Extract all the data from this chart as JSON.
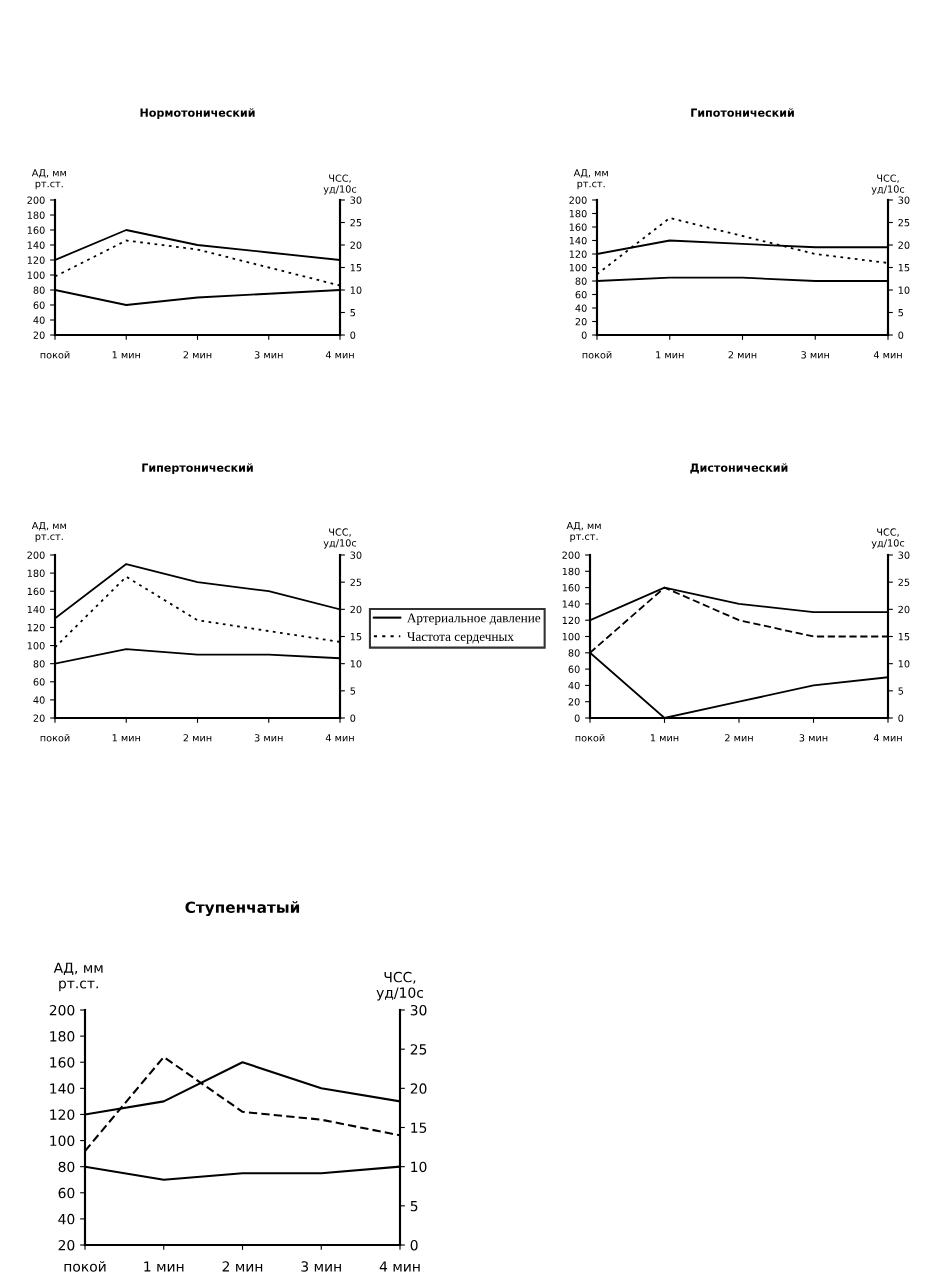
{
  "chart_data": [
    {
      "type": "line",
      "title": "Нормотонический",
      "ylabel": "АД, мм\nрт.ст.",
      "y2label": "ЧСС,\nуд/10с",
      "categories": [
        "покой",
        "1 мин",
        "2 мин",
        "3 мин",
        "4 мин"
      ],
      "series": [
        {
          "color": "#000000",
          "values": [
            120,
            160,
            140,
            130,
            120
          ],
          "line_style": "solid"
        },
        {
          "color": "#000000",
          "values": [
            80,
            60,
            70,
            75,
            80
          ],
          "line_style": "solid"
        },
        {
          "color": "#000000",
          "values": [
            13,
            21,
            19,
            15,
            11
          ],
          "axis": "y2",
          "line_style": "dotted"
        }
      ],
      "ylim": [
        20,
        200
      ],
      "yticks": [
        20,
        40,
        60,
        80,
        100,
        120,
        140,
        160,
        180,
        200
      ],
      "y2lim": [
        0,
        30
      ],
      "y2ticks": [
        0,
        5,
        10,
        15,
        20,
        25,
        30
      ],
      "grid": false,
      "legend": false
    },
    {
      "type": "line",
      "title": "Гипотонический",
      "ylabel": "АД, мм\nрт.ст.",
      "y2label": "ЧСС,\nуд/10с",
      "categories": [
        "покой",
        "1 мин",
        "2 мин",
        "3 мин",
        "4 мин"
      ],
      "series": [
        {
          "color": "#000000",
          "values": [
            120,
            140,
            135,
            130,
            130
          ],
          "line_style": "solid"
        },
        {
          "color": "#000000",
          "values": [
            80,
            85,
            85,
            80,
            80
          ],
          "line_style": "solid"
        },
        {
          "color": "#000000",
          "values": [
            13.5,
            26,
            22,
            18,
            16
          ],
          "axis": "y2",
          "line_style": "dotted"
        }
      ],
      "ylim": [
        0,
        200
      ],
      "yticks": [
        0,
        20,
        40,
        60,
        80,
        100,
        120,
        140,
        160,
        180,
        200
      ],
      "y2lim": [
        0,
        30
      ],
      "y2ticks": [
        0,
        5,
        10,
        15,
        20,
        25,
        30
      ],
      "grid": false,
      "legend": false
    },
    {
      "type": "line",
      "title": "Гипертонический",
      "ylabel": "АД, мм\nрт.ст.",
      "y2label": "ЧСС,\nуд/10с",
      "categories": [
        "покой",
        "1 мин",
        "2 мин",
        "3 мин",
        "4 мин"
      ],
      "series": [
        {
          "name": "Артериальное давление",
          "color": "#000000",
          "values": [
            130,
            190,
            170,
            160,
            140
          ],
          "line_style": "solid"
        },
        {
          "color": "#000000",
          "values": [
            80,
            96,
            90,
            90,
            86
          ],
          "line_style": "solid"
        },
        {
          "name": "Частота сердечных",
          "color": "#000000",
          "values": [
            13,
            26,
            18,
            16,
            14
          ],
          "axis": "y2",
          "line_style": "dotted"
        }
      ],
      "ylim": [
        20,
        200
      ],
      "yticks": [
        20,
        40,
        60,
        80,
        100,
        120,
        140,
        160,
        180,
        200
      ],
      "y2lim": [
        0,
        30
      ],
      "y2ticks": [
        0,
        5,
        10,
        15,
        20,
        25,
        30
      ],
      "grid": false,
      "legend": "right"
    },
    {
      "type": "line",
      "title": "Дистонический",
      "ylabel": "АД, мм\nрт.ст.",
      "y2label": "ЧСС,\nуд/10с",
      "categories": [
        "покой",
        "1 мин",
        "2 мин",
        "3 мин",
        "4 мин"
      ],
      "series": [
        {
          "color": "#000000",
          "values": [
            120,
            160,
            140,
            130,
            130
          ],
          "line_style": "solid"
        },
        {
          "color": "#000000",
          "values": [
            80,
            0,
            20,
            40,
            50
          ],
          "line_style": "solid"
        },
        {
          "color": "#000000",
          "values": [
            12,
            24,
            18,
            15,
            15
          ],
          "axis": "y2",
          "line_style": "dashed"
        }
      ],
      "ylim": [
        0,
        200
      ],
      "yticks": [
        0,
        20,
        40,
        60,
        80,
        100,
        120,
        140,
        160,
        180,
        200
      ],
      "y2lim": [
        0,
        30
      ],
      "y2ticks": [
        0,
        5,
        10,
        15,
        20,
        25,
        30
      ],
      "grid": false,
      "legend": false
    },
    {
      "type": "line",
      "title": "Ступенчатый",
      "ylabel": "АД, мм\nрт.ст.",
      "y2label": "ЧСС,\nуд/10с",
      "categories": [
        "покой",
        "1 мин",
        "2 мин",
        "3 мин",
        "4 мин"
      ],
      "series": [
        {
          "color": "#000000",
          "values": [
            120,
            130,
            160,
            140,
            130
          ],
          "line_style": "solid"
        },
        {
          "color": "#000000",
          "values": [
            80,
            70,
            75,
            75,
            80
          ],
          "line_style": "solid"
        },
        {
          "color": "#000000",
          "values": [
            12,
            24,
            17,
            16,
            14
          ],
          "axis": "y2",
          "line_style": "dashed"
        }
      ],
      "ylim": [
        20,
        200
      ],
      "yticks": [
        20,
        40,
        60,
        80,
        100,
        120,
        140,
        160,
        180,
        200
      ],
      "y2lim": [
        0,
        30
      ],
      "y2ticks": [
        0,
        5,
        10,
        15,
        20,
        25,
        30
      ],
      "grid": false,
      "legend": false
    }
  ]
}
